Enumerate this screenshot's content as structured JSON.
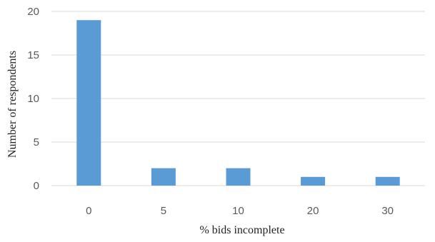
{
  "chart_data": {
    "type": "bar",
    "title": "",
    "xlabel": "% bids incomplete",
    "ylabel": "Number of respondents",
    "categories": [
      "0",
      "5",
      "10",
      "20",
      "30"
    ],
    "values": [
      19,
      2,
      2,
      1,
      1
    ],
    "ylim": [
      0,
      20
    ],
    "yticks": [
      0,
      5,
      10,
      15,
      20
    ],
    "grid": true,
    "legend": "none",
    "colors": {
      "bar": "#5B9BD5",
      "grid": "#D9D9D9",
      "tick_text": "#595959"
    }
  }
}
